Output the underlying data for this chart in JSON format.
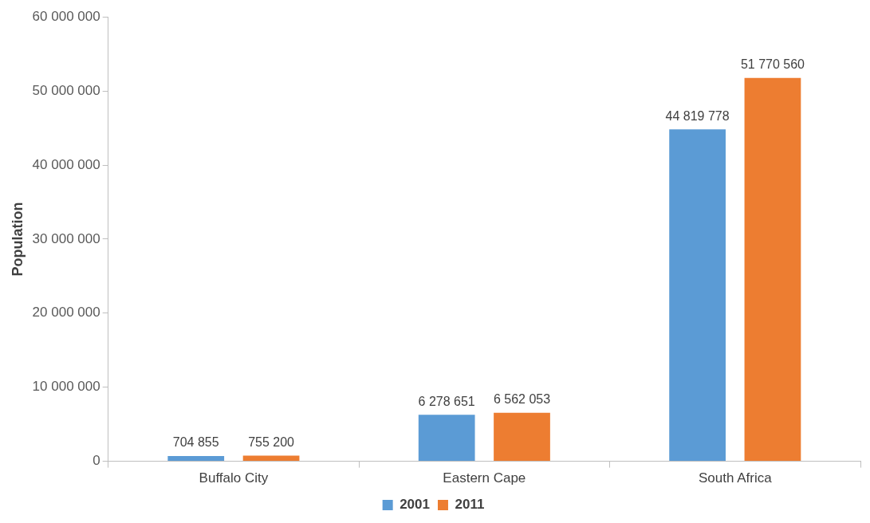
{
  "chart_data": {
    "type": "bar",
    "ylabel": "Population",
    "categories": [
      "Buffalo City",
      "Eastern Cape",
      "South Africa"
    ],
    "series": [
      {
        "name": "2001",
        "color": "#5b9bd5",
        "values": [
          704855,
          6278651,
          44819778
        ],
        "value_labels": [
          "704 855",
          "6 278 651",
          "44 819 778"
        ]
      },
      {
        "name": "2011",
        "color": "#ed7d31",
        "values": [
          755200,
          6562053,
          51770560
        ],
        "value_labels": [
          "755 200",
          "6 562 053",
          "51 770 560"
        ]
      }
    ],
    "ylim": [
      0,
      60000000
    ],
    "yticks": [
      {
        "value": 0,
        "label": "0"
      },
      {
        "value": 10000000,
        "label": "10 000 000"
      },
      {
        "value": 20000000,
        "label": "20 000 000"
      },
      {
        "value": 30000000,
        "label": "30 000 000"
      },
      {
        "value": 40000000,
        "label": "40 000 000"
      },
      {
        "value": 50000000,
        "label": "50 000 000"
      },
      {
        "value": 60000000,
        "label": "60 000 000"
      }
    ],
    "grid": false,
    "legend": "bottom"
  }
}
